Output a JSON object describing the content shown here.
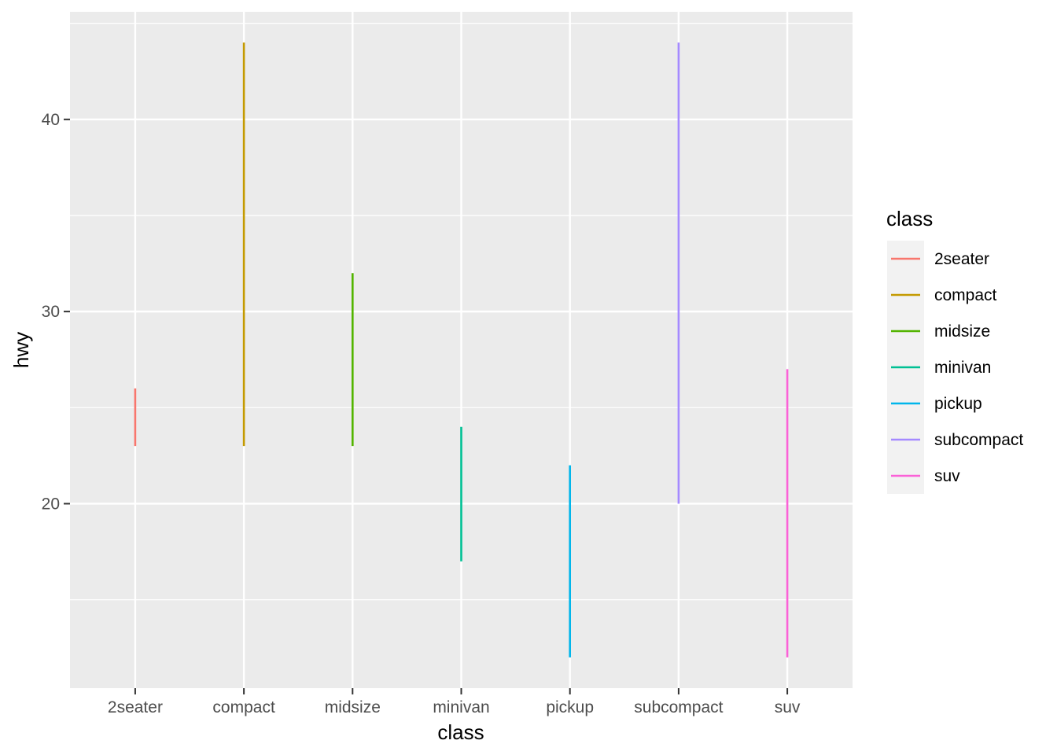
{
  "chart_data": {
    "type": "linerange",
    "title": "",
    "xlabel": "class",
    "ylabel": "hwy",
    "categories": [
      "2seater",
      "compact",
      "midsize",
      "minivan",
      "pickup",
      "subcompact",
      "suv"
    ],
    "series": [
      {
        "category": "2seater",
        "ymin": 23,
        "ymax": 26,
        "color": "#F8766D"
      },
      {
        "category": "compact",
        "ymin": 23,
        "ymax": 44,
        "color": "#C49A00"
      },
      {
        "category": "midsize",
        "ymin": 23,
        "ymax": 32,
        "color": "#53B400"
      },
      {
        "category": "minivan",
        "ymin": 17,
        "ymax": 24,
        "color": "#00C094"
      },
      {
        "category": "pickup",
        "ymin": 12,
        "ymax": 22,
        "color": "#00B6EB"
      },
      {
        "category": "subcompact",
        "ymin": 20,
        "ymax": 44,
        "color": "#A58AFF"
      },
      {
        "category": "suv",
        "ymin": 12,
        "ymax": 27,
        "color": "#FB61D7"
      }
    ],
    "ylim": [
      10.4,
      45.6
    ],
    "y_major_ticks": [
      20,
      30,
      40
    ],
    "y_minor_ticks": [
      15,
      25,
      35,
      45
    ],
    "grid": true,
    "legend": {
      "title": "class",
      "position": "right",
      "entries": [
        "2seater",
        "compact",
        "midsize",
        "minivan",
        "pickup",
        "subcompact",
        "suv"
      ]
    },
    "colors": {
      "panel_background": "#EBEBEB",
      "grid": "#FFFFFF",
      "legend_key_background": "#F2F2F2"
    }
  }
}
